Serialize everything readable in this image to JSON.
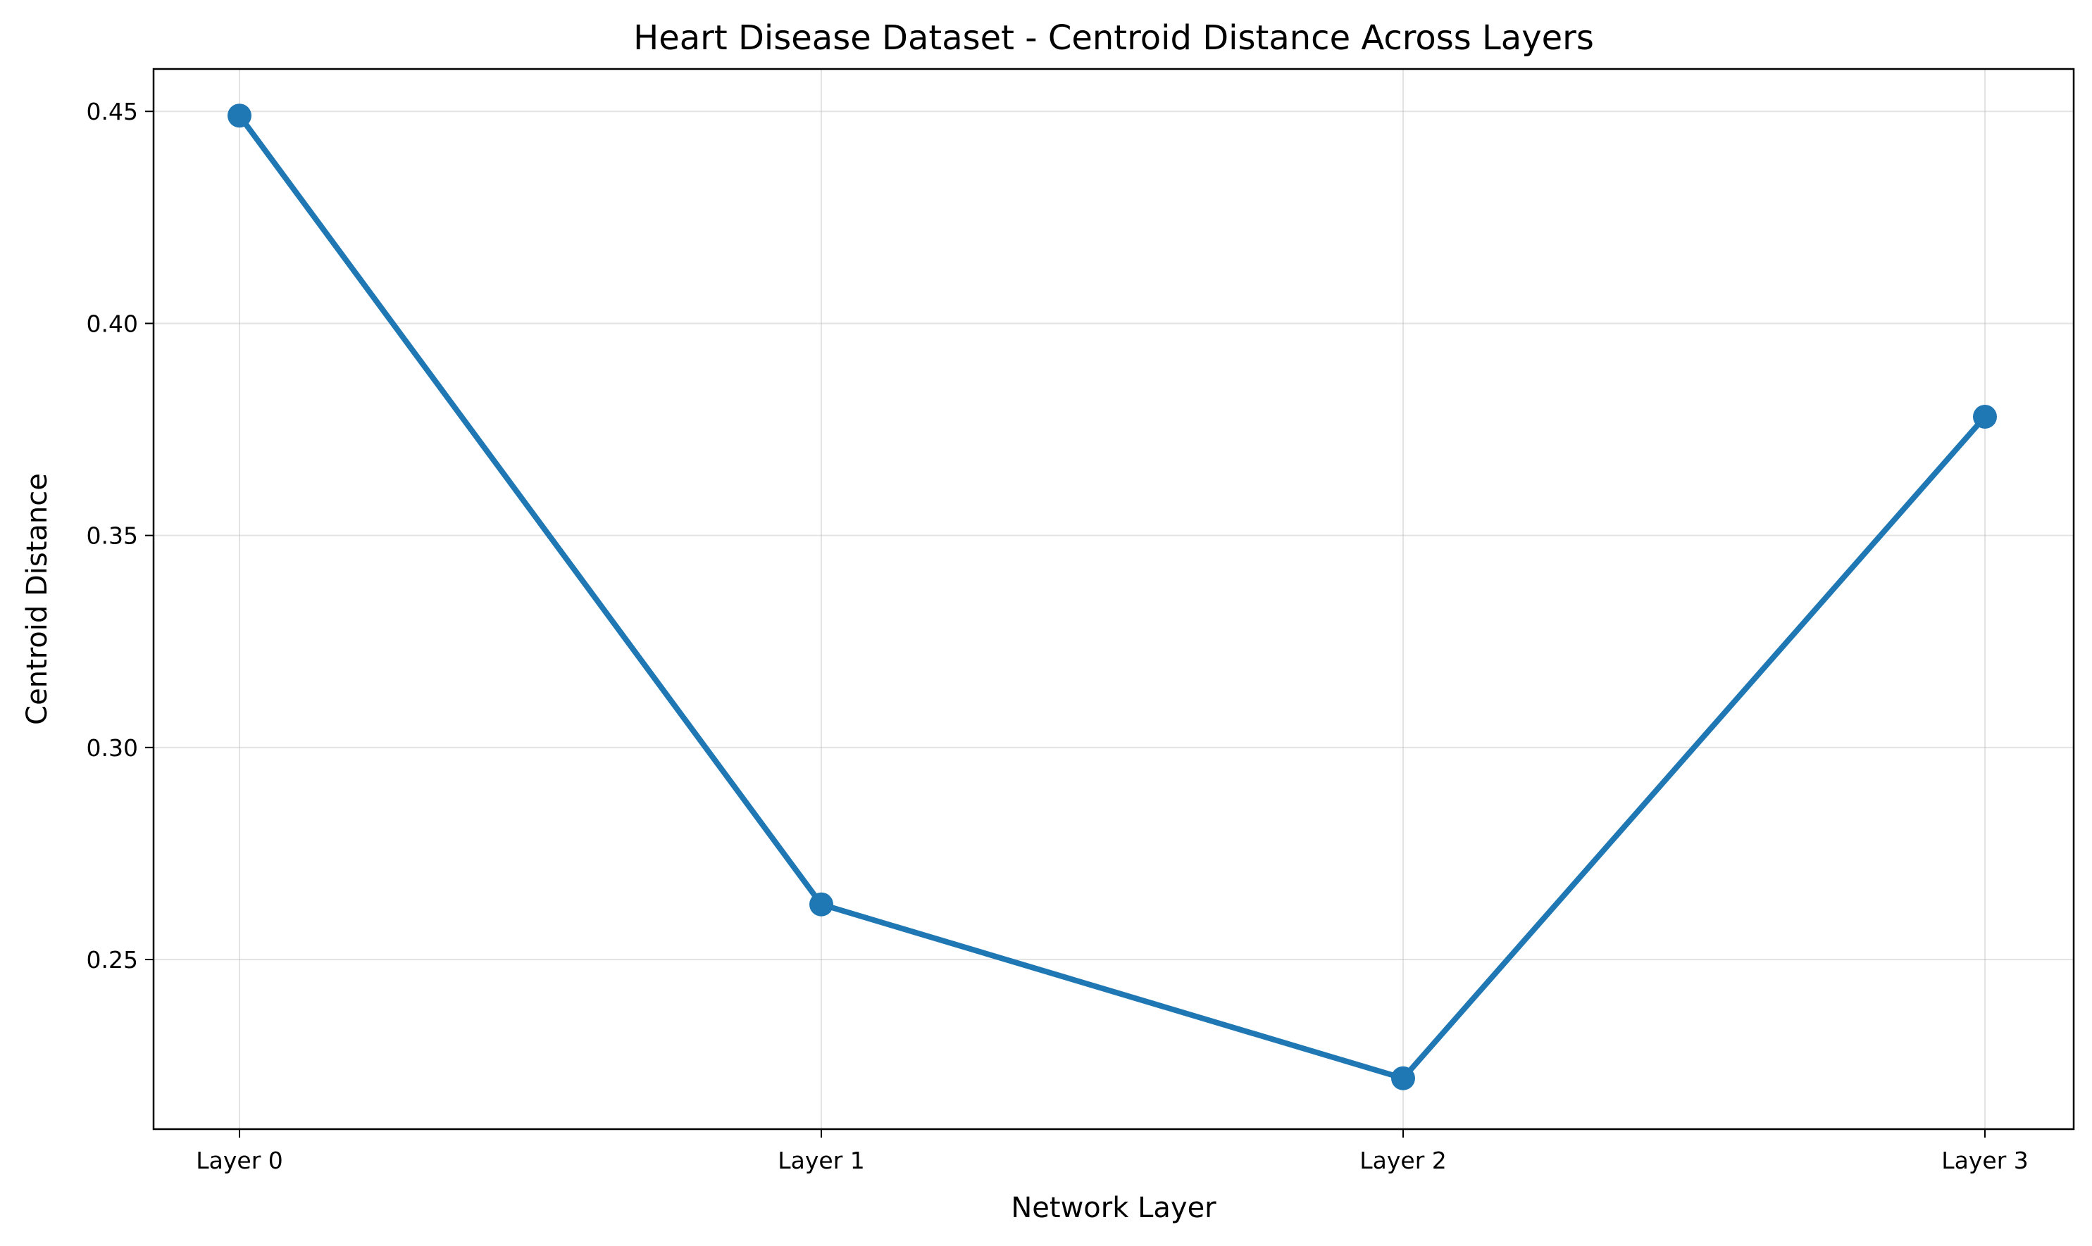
{
  "chart_data": {
    "type": "line",
    "title": "Heart Disease Dataset - Centroid Distance Across Layers",
    "xlabel": "Network Layer",
    "ylabel": "Centroid Distance",
    "categories": [
      "Layer 0",
      "Layer 1",
      "Layer 2",
      "Layer 3"
    ],
    "series": [
      {
        "values": [
          0.449,
          0.263,
          0.222,
          0.378
        ],
        "color": "#1f77b4",
        "marker": "circle"
      }
    ],
    "ylim": [
      0.21,
      0.46
    ],
    "yticks": [
      0.25,
      0.3,
      0.35,
      0.4,
      0.45
    ],
    "ytick_labels": [
      "0.25",
      "0.30",
      "0.35",
      "0.40",
      "0.45"
    ],
    "grid": true,
    "legend": "none"
  }
}
